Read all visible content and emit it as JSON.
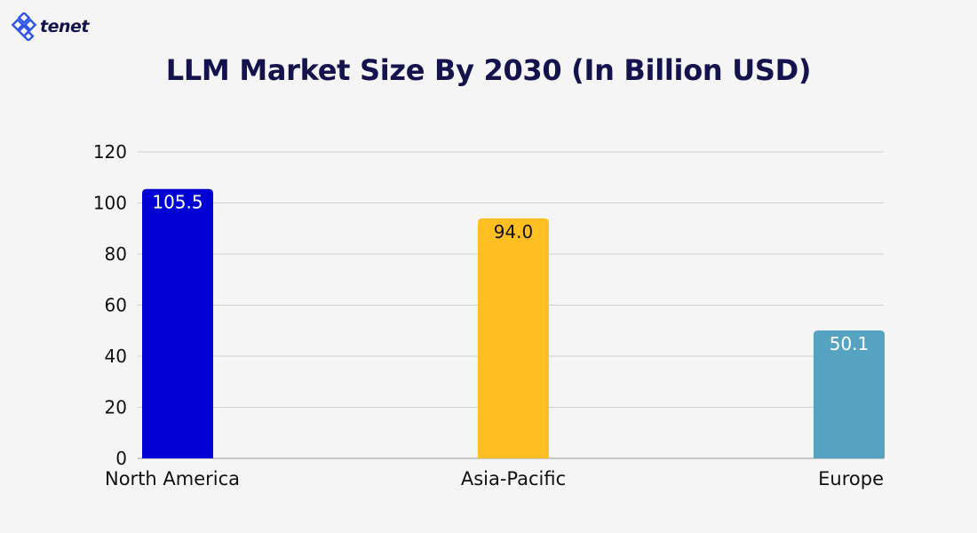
{
  "logo": {
    "text": "tenet"
  },
  "chart_data": {
    "type": "bar",
    "title": "LLM Market Size By 2030 (In Billion USD)",
    "categories": [
      "North America",
      "Asia-Pacific",
      "Europe"
    ],
    "values": [
      105.5,
      94.0,
      50.1
    ],
    "data_labels": [
      "105.5",
      "94.0",
      "50.1"
    ],
    "colors": [
      "#0000d4",
      "#ffbf22",
      "#56a3c1"
    ],
    "label_colors": [
      "#ffffff",
      "#111111",
      "#ffffff"
    ],
    "xlabel": "",
    "ylabel": "",
    "ylim": [
      0,
      120
    ],
    "yticks": [
      0,
      20,
      40,
      60,
      80,
      100,
      120
    ],
    "grid": true,
    "legend": "none"
  }
}
